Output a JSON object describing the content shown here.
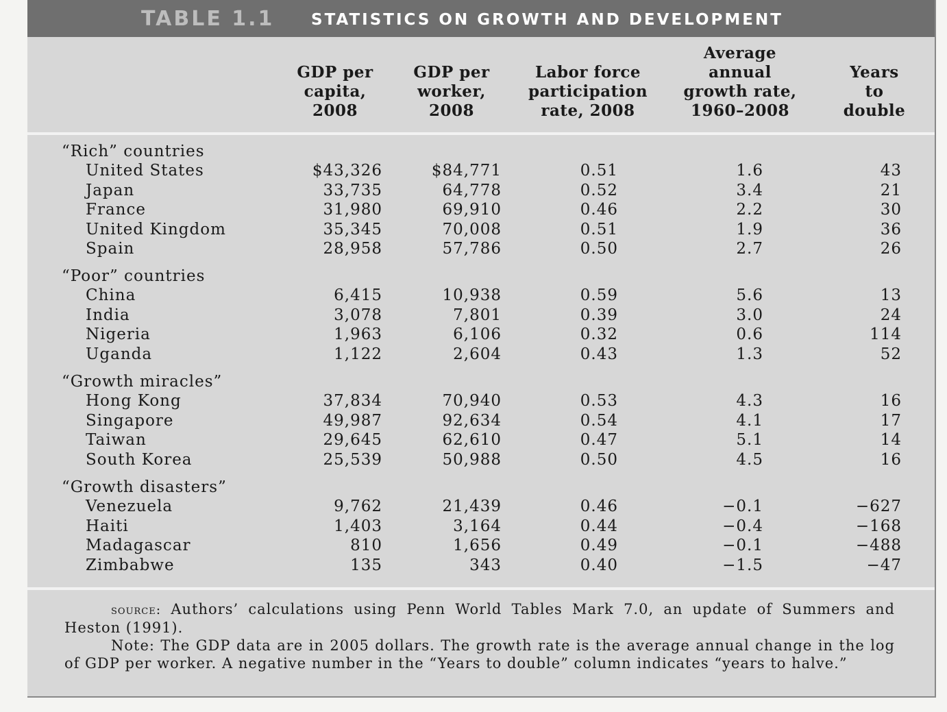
{
  "table": {
    "number": "TABLE 1.1",
    "title": "STATISTICS ON GROWTH AND DEVELOPMENT",
    "columns": [
      [
        "GDP per",
        "capita,",
        "2008"
      ],
      [
        "GDP per",
        "worker,",
        "2008"
      ],
      [
        "Labor force",
        "participation",
        "rate, 2008"
      ],
      [
        "Average",
        "annual",
        "growth rate,",
        "1960–2008"
      ],
      [
        "Years",
        "to",
        "double"
      ]
    ],
    "groups": [
      {
        "label": "“Rich” countries",
        "rows": [
          [
            "United States",
            "$43,326",
            "$84,771",
            "0.51",
            "1.6",
            "43"
          ],
          [
            "Japan",
            "33,735",
            "64,778",
            "0.52",
            "3.4",
            "21"
          ],
          [
            "France",
            "31,980",
            "69,910",
            "0.46",
            "2.2",
            "30"
          ],
          [
            "United Kingdom",
            "35,345",
            "70,008",
            "0.51",
            "1.9",
            "36"
          ],
          [
            "Spain",
            "28,958",
            "57,786",
            "0.50",
            "2.7",
            "26"
          ]
        ]
      },
      {
        "label": "“Poor” countries",
        "rows": [
          [
            "China",
            "6,415",
            "10,938",
            "0.59",
            "5.6",
            "13"
          ],
          [
            "India",
            "3,078",
            "7,801",
            "0.39",
            "3.0",
            "24"
          ],
          [
            "Nigeria",
            "1,963",
            "6,106",
            "0.32",
            "0.6",
            "114"
          ],
          [
            "Uganda",
            "1,122",
            "2,604",
            "0.43",
            "1.3",
            "52"
          ]
        ]
      },
      {
        "label": "“Growth miracles”",
        "rows": [
          [
            "Hong Kong",
            "37,834",
            "70,940",
            "0.53",
            "4.3",
            "16"
          ],
          [
            "Singapore",
            "49,987",
            "92,634",
            "0.54",
            "4.1",
            "17"
          ],
          [
            "Taiwan",
            "29,645",
            "62,610",
            "0.47",
            "5.1",
            "14"
          ],
          [
            "South Korea",
            "25,539",
            "50,988",
            "0.50",
            "4.5",
            "16"
          ]
        ]
      },
      {
        "label": "“Growth disasters”",
        "rows": [
          [
            "Venezuela",
            "9,762",
            "21,439",
            "0.46",
            "−0.1",
            "−627"
          ],
          [
            "Haiti",
            "1,403",
            "3,164",
            "0.44",
            "−0.4",
            "−168"
          ],
          [
            "Madagascar",
            "810",
            "1,656",
            "0.49",
            "−0.1",
            "−488"
          ],
          [
            "Zimbabwe",
            "135",
            "343",
            "0.40",
            "−1.5",
            "−47"
          ]
        ]
      }
    ],
    "source_label": "source:",
    "source_text": "Authors’ calculations using Penn World Tables Mark 7.0, an update of Summers and Heston (1991).",
    "note_text": "Note: The GDP data are in 2005 dollars. The growth rate is the average annual change in the log of GDP per worker. A negative number in the “Years to double” column indicates “years to halve.”"
  }
}
